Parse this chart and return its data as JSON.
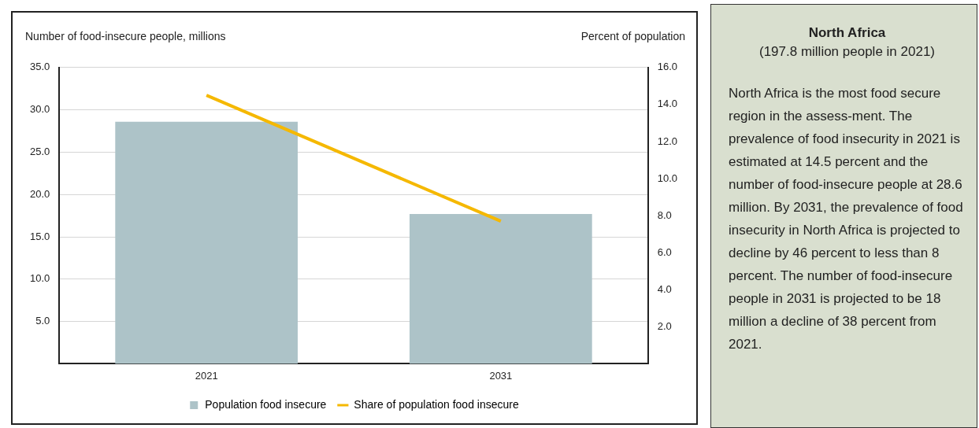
{
  "chart_data": [
    {
      "type": "bar",
      "ylabel": "Number of food-insecure people, millions",
      "y2label": "Percent of population",
      "categories": [
        "2021",
        "2031"
      ],
      "series": [
        {
          "name": "Population food insecure",
          "type": "bar",
          "color": "#adc3c8",
          "values": [
            28.6,
            17.7
          ]
        },
        {
          "name": "Share of population food insecure",
          "type": "line",
          "axis": "y2",
          "color": "#f5b800",
          "values": [
            14.5,
            7.7
          ]
        }
      ],
      "ylim": [
        0,
        35
      ],
      "yticks": [
        {
          "value": 5,
          "label": "5.0"
        },
        {
          "value": 10,
          "label": "10.0"
        },
        {
          "value": 15,
          "label": "15.0"
        },
        {
          "value": 20,
          "label": "20.0"
        },
        {
          "value": 25,
          "label": "25.0"
        },
        {
          "value": 30,
          "label": "30.0"
        },
        {
          "value": 35,
          "label": "35.0"
        }
      ],
      "y2lim": [
        0,
        16
      ],
      "y2ticks": [
        {
          "value": 2,
          "label": "2.0"
        },
        {
          "value": 4,
          "label": "4.0"
        },
        {
          "value": 6,
          "label": "6.0"
        },
        {
          "value": 8,
          "label": "8.0"
        },
        {
          "value": 10,
          "label": "10.0"
        },
        {
          "value": 12,
          "label": "12.0"
        },
        {
          "value": 14,
          "label": "14.0"
        },
        {
          "value": 16,
          "label": "16.0"
        }
      ],
      "grid": "y",
      "legend": "bottom",
      "marker": "none",
      "line_style": "solid"
    },
    {
      "type": "other",
      "title": "North Africa",
      "subtitle": "(197.8 million people in 2021)",
      "annotations": [
        "North Africa is the most food secure region in the assess-ment. The prevalence of food insecurity in 2021 is estimated at 14.5 percent and the number of food-insecure people at 28.6 million. By 2031, the prevalence of food insecurity in North Africa is projected to decline by 46 percent to less than 8 percent. The number of food-insecure people in 2031 is projected to be 18 million a decline of 38 percent from 2021."
      ]
    }
  ]
}
